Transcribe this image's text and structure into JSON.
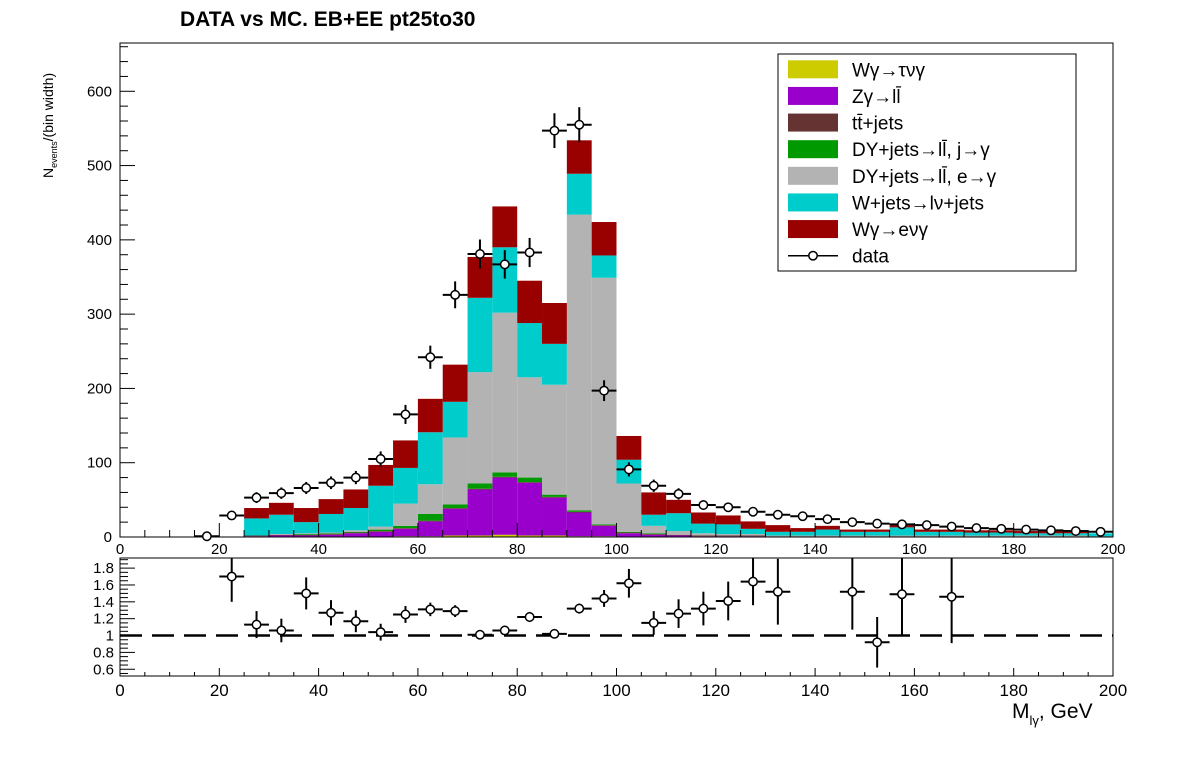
{
  "title": "DATA vs MC. EB+EE  pt25to30",
  "ylabel": {
    "main": "N",
    "sub": "events",
    "tail": "/(bin width)"
  },
  "xlabel": {
    "main": "M",
    "sub": "lγ",
    "tail": ", GeV"
  },
  "colors": {
    "wgamma_taunugamma": "#cccc00",
    "zgamma": "#9900cc",
    "ttbar": "#663333",
    "dy_jet": "#009900",
    "dy_e": "#b3b3b3",
    "wjets": "#00cccc",
    "wgamma_enugamma": "#990000"
  },
  "chart_data": [
    {
      "type": "stacked_histogram",
      "x_range": [
        0,
        200
      ],
      "ylim": [
        0,
        665
      ],
      "x_ticks": [
        "0",
        "20",
        "40",
        "60",
        "80",
        "100",
        "120",
        "140",
        "160",
        "180",
        "200"
      ],
      "y_ticks": [
        "0",
        "100",
        "200",
        "300",
        "400",
        "500",
        "600"
      ],
      "bin_edges": [
        0,
        5,
        10,
        15,
        20,
        25,
        30,
        35,
        40,
        45,
        50,
        55,
        60,
        65,
        70,
        75,
        80,
        85,
        90,
        95,
        100,
        105,
        110,
        115,
        120,
        125,
        130,
        135,
        140,
        145,
        150,
        155,
        160,
        165,
        170,
        175,
        180,
        185,
        190,
        195,
        200
      ],
      "legend_position": "top-right",
      "legend": [
        {
          "key": "wgamma_taunugamma",
          "label": " Wγ→τνγ",
          "style": "fill"
        },
        {
          "key": "zgamma",
          "label": "Zγ→ll̄",
          "style": "fill"
        },
        {
          "key": "ttbar",
          "label": "tt̄+jets",
          "style": "fill"
        },
        {
          "key": "dy_jet",
          "label": "DY+jets→ll̄, j→γ",
          "style": "fill"
        },
        {
          "key": "dy_e",
          "label": "DY+jets→ll̄, e→γ",
          "style": "fill"
        },
        {
          "key": "wjets",
          "label": "W+jets→lν+jets",
          "style": "fill"
        },
        {
          "key": "wgamma_enugamma",
          "label": "Wγ→eνγ",
          "style": "fill"
        },
        {
          "key": "data",
          "label": "data",
          "style": "marker"
        }
      ],
      "series": [
        {
          "key": "wgamma_taunugamma",
          "values": [
            0,
            0,
            0,
            0,
            0,
            0,
            0,
            0,
            0,
            0,
            0,
            1,
            1,
            2,
            2,
            3,
            2,
            2,
            1,
            1,
            0,
            0,
            0,
            0,
            0,
            0,
            0,
            0,
            0,
            0,
            0,
            0,
            0,
            0,
            0,
            0,
            0,
            0,
            0,
            0
          ]
        },
        {
          "key": "zgamma",
          "values": [
            0,
            0,
            0,
            0,
            0,
            1,
            2,
            2,
            3,
            5,
            7,
            10,
            20,
            36,
            62,
            77,
            71,
            51,
            32,
            14,
            5,
            3,
            2,
            1,
            1,
            1,
            0,
            0,
            0,
            0,
            0,
            0,
            0,
            0,
            0,
            0,
            0,
            0,
            0,
            0
          ]
        },
        {
          "key": "ttbar",
          "values": [
            0,
            0,
            0,
            0,
            0,
            1,
            1,
            1,
            1,
            1,
            1,
            1,
            1,
            1,
            1,
            1,
            1,
            1,
            1,
            1,
            1,
            1,
            1,
            1,
            1,
            1,
            1,
            1,
            1,
            1,
            1,
            1,
            1,
            1,
            1,
            1,
            1,
            1,
            1,
            1
          ]
        },
        {
          "key": "dy_jet",
          "values": [
            0,
            0,
            0,
            0,
            0,
            0,
            0,
            1,
            1,
            1,
            2,
            3,
            9,
            5,
            7,
            6,
            6,
            3,
            2,
            1,
            1,
            1,
            0,
            0,
            0,
            0,
            0,
            0,
            0,
            0,
            0,
            0,
            0,
            0,
            0,
            0,
            0,
            0,
            0,
            0
          ]
        },
        {
          "key": "dy_e",
          "values": [
            0,
            0,
            0,
            0,
            0,
            0,
            1,
            1,
            1,
            2,
            4,
            30,
            40,
            90,
            150,
            215,
            135,
            148,
            398,
            332,
            65,
            10,
            5,
            3,
            2,
            2,
            1,
            1,
            1,
            1,
            1,
            1,
            1,
            1,
            1,
            1,
            1,
            1,
            1,
            0
          ]
        },
        {
          "key": "wjets",
          "values": [
            0,
            0,
            0,
            0,
            0,
            23,
            26,
            15,
            25,
            30,
            55,
            48,
            70,
            48,
            100,
            88,
            73,
            55,
            55,
            30,
            32,
            15,
            24,
            13,
            13,
            7,
            5,
            5,
            8,
            5,
            5,
            11,
            5,
            5,
            4,
            4,
            3,
            3,
            3,
            4
          ]
        },
        {
          "key": "wgamma_enugamma",
          "values": [
            0,
            0,
            0,
            0,
            0,
            14,
            16,
            19,
            20,
            25,
            28,
            37,
            45,
            50,
            55,
            55,
            57,
            55,
            45,
            45,
            32,
            30,
            18,
            15,
            12,
            10,
            9,
            5,
            5,
            3,
            3,
            3,
            3,
            3,
            3,
            3,
            3,
            3,
            3,
            0
          ]
        }
      ],
      "data_points": [
        {
          "x": 17.5,
          "y": 1,
          "err": 1
        },
        {
          "x": 22.5,
          "y": 29,
          "err": 5.4
        },
        {
          "x": 27.5,
          "y": 53,
          "err": 7.3
        },
        {
          "x": 32.5,
          "y": 59,
          "err": 7.7
        },
        {
          "x": 37.5,
          "y": 66,
          "err": 8.1
        },
        {
          "x": 42.5,
          "y": 73,
          "err": 8.5
        },
        {
          "x": 47.5,
          "y": 80,
          "err": 8.9
        },
        {
          "x": 52.5,
          "y": 105,
          "err": 10.2
        },
        {
          "x": 57.5,
          "y": 165,
          "err": 12.8
        },
        {
          "x": 62.5,
          "y": 242,
          "err": 15.6
        },
        {
          "x": 67.5,
          "y": 326,
          "err": 18.1
        },
        {
          "x": 72.5,
          "y": 381,
          "err": 19.5
        },
        {
          "x": 77.5,
          "y": 367,
          "err": 19.2
        },
        {
          "x": 82.5,
          "y": 383,
          "err": 19.6
        },
        {
          "x": 87.5,
          "y": 547,
          "err": 23.4
        },
        {
          "x": 92.5,
          "y": 555,
          "err": 23.6
        },
        {
          "x": 97.5,
          "y": 197,
          "err": 14
        },
        {
          "x": 102.5,
          "y": 91,
          "err": 9.5
        },
        {
          "x": 107.5,
          "y": 69,
          "err": 8.3
        },
        {
          "x": 112.5,
          "y": 58,
          "err": 7.6
        },
        {
          "x": 117.5,
          "y": 43,
          "err": 6.6
        },
        {
          "x": 122.5,
          "y": 40,
          "err": 6.3
        },
        {
          "x": 127.5,
          "y": 34,
          "err": 5.8
        },
        {
          "x": 132.5,
          "y": 30,
          "err": 5.5
        },
        {
          "x": 137.5,
          "y": 28,
          "err": 5.3
        },
        {
          "x": 142.5,
          "y": 24,
          "err": 4.9
        },
        {
          "x": 147.5,
          "y": 20,
          "err": 4.5
        },
        {
          "x": 152.5,
          "y": 18,
          "err": 4.2
        },
        {
          "x": 157.5,
          "y": 17,
          "err": 4.1
        },
        {
          "x": 162.5,
          "y": 16,
          "err": 4
        },
        {
          "x": 167.5,
          "y": 14,
          "err": 3.7
        },
        {
          "x": 172.5,
          "y": 12,
          "err": 3.5
        },
        {
          "x": 177.5,
          "y": 11,
          "err": 3.3
        },
        {
          "x": 182.5,
          "y": 10,
          "err": 3.2
        },
        {
          "x": 187.5,
          "y": 9,
          "err": 3
        },
        {
          "x": 192.5,
          "y": 8,
          "err": 2.8
        },
        {
          "x": 197.5,
          "y": 7,
          "err": 2.6
        }
      ]
    },
    {
      "type": "scatter",
      "description_role": "ratio_panel",
      "x_range": [
        0,
        200
      ],
      "ylim": [
        0.52,
        1.92
      ],
      "x_ticks": [
        "0",
        "20",
        "40",
        "60",
        "80",
        "100",
        "120",
        "140",
        "160",
        "180",
        "200"
      ],
      "y_ticks": [
        "0.6",
        "0.8",
        "1",
        "1.2",
        "1.4",
        "1.6",
        "1.8"
      ],
      "reference_line": 1.0,
      "points": [
        {
          "x": 22.5,
          "y": 1.7,
          "err": 0.3
        },
        {
          "x": 27.5,
          "y": 1.13,
          "err": 0.16
        },
        {
          "x": 32.5,
          "y": 1.06,
          "err": 0.14
        },
        {
          "x": 37.5,
          "y": 1.5,
          "err": 0.19
        },
        {
          "x": 42.5,
          "y": 1.27,
          "err": 0.15
        },
        {
          "x": 47.5,
          "y": 1.17,
          "err": 0.13
        },
        {
          "x": 52.5,
          "y": 1.04,
          "err": 0.1
        },
        {
          "x": 57.5,
          "y": 1.25,
          "err": 0.1
        },
        {
          "x": 62.5,
          "y": 1.31,
          "err": 0.08
        },
        {
          "x": 67.5,
          "y": 1.29,
          "err": 0.07
        },
        {
          "x": 72.5,
          "y": 1.01,
          "err": 0.05
        },
        {
          "x": 77.5,
          "y": 1.06,
          "err": 0.05
        },
        {
          "x": 82.5,
          "y": 1.22,
          "err": 0.06
        },
        {
          "x": 87.5,
          "y": 1.02,
          "err": 0.04
        },
        {
          "x": 92.5,
          "y": 1.32,
          "err": 0.06
        },
        {
          "x": 97.5,
          "y": 1.44,
          "err": 0.1
        },
        {
          "x": 102.5,
          "y": 1.62,
          "err": 0.17
        },
        {
          "x": 107.5,
          "y": 1.15,
          "err": 0.14
        },
        {
          "x": 112.5,
          "y": 1.26,
          "err": 0.17
        },
        {
          "x": 117.5,
          "y": 1.32,
          "err": 0.2
        },
        {
          "x": 122.5,
          "y": 1.41,
          "err": 0.23
        },
        {
          "x": 127.5,
          "y": 1.64,
          "err": 0.28
        },
        {
          "x": 132.5,
          "y": 1.52,
          "err": 0.39
        },
        {
          "x": 147.5,
          "y": 1.52,
          "err": 0.45
        },
        {
          "x": 152.5,
          "y": 0.92,
          "err": 0.3
        },
        {
          "x": 157.5,
          "y": 1.49,
          "err": 0.5
        },
        {
          "x": 167.5,
          "y": 1.46,
          "err": 0.55
        }
      ]
    }
  ]
}
